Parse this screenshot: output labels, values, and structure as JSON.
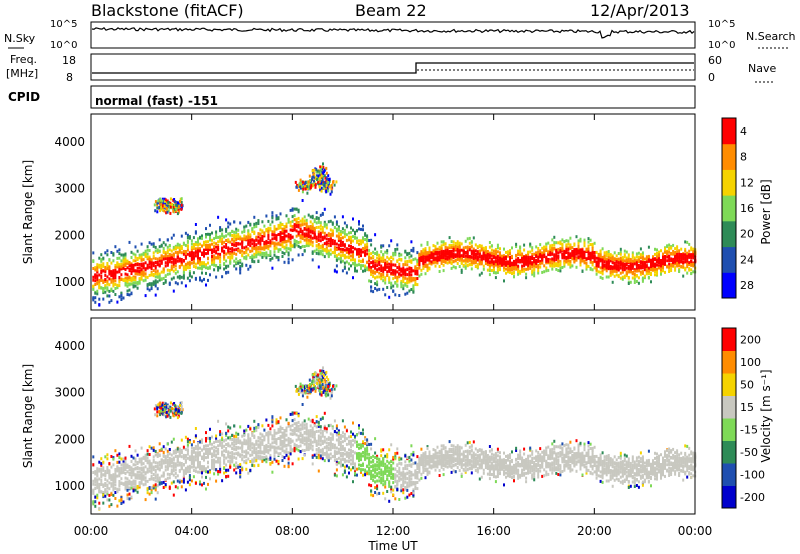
{
  "header": {
    "station": "Blackstone (fitACF)",
    "beam": "Beam 22",
    "date": "12/Apr/2013"
  },
  "top_panels": {
    "nsky_label": "N.Sky",
    "nsearch_label": "N.Search",
    "noise_ticks": [
      "10^5",
      "10^0"
    ],
    "freq_label_1": "Freq.",
    "freq_label_2": "[MHz]",
    "freq_ticks": [
      "18",
      "8"
    ],
    "nave_label": "Nave",
    "nave_ticks": [
      "60",
      "0"
    ],
    "cpid_label": "CPID",
    "cpid_text": "normal (fast) -151"
  },
  "chart_data": [
    {
      "type": "heatmap",
      "name": "power",
      "ylabel": "Slant Range [km]",
      "ylim": [
        400,
        4600
      ],
      "yticks": [
        "1000",
        "2000",
        "3000",
        "4000"
      ],
      "xlim": [
        0,
        24
      ],
      "colorbar_label": "Power [dB]",
      "colorbar_ticks": [
        "4",
        "8",
        "12",
        "16",
        "20",
        "24",
        "28"
      ],
      "colors": [
        "#0000ff",
        "#1f4fb0",
        "#2e8b57",
        "#7ed957",
        "#f5d300",
        "#ff8c00",
        "#ff0000"
      ]
    },
    {
      "type": "heatmap",
      "name": "velocity",
      "ylabel": "Slant Range [km]",
      "ylim": [
        400,
        4600
      ],
      "yticks": [
        "1000",
        "2000",
        "3000",
        "4000"
      ],
      "xlim": [
        0,
        24
      ],
      "colorbar_label": "Velocity [m s⁻¹]",
      "colorbar_ticks": [
        "200",
        "100",
        "50",
        "15",
        "-15",
        "-50",
        "-100",
        "-200"
      ],
      "colors": [
        "#0000cc",
        "#1f4fb0",
        "#2e8b57",
        "#7ed957",
        "#c8c8c0",
        "#f5d300",
        "#ff8c00",
        "#ff0000"
      ]
    }
  ],
  "x_axis": {
    "label": "Time UT",
    "ticks": [
      "00:00",
      "04:00",
      "08:00",
      "12:00",
      "16:00",
      "20:00",
      "00:00"
    ]
  }
}
